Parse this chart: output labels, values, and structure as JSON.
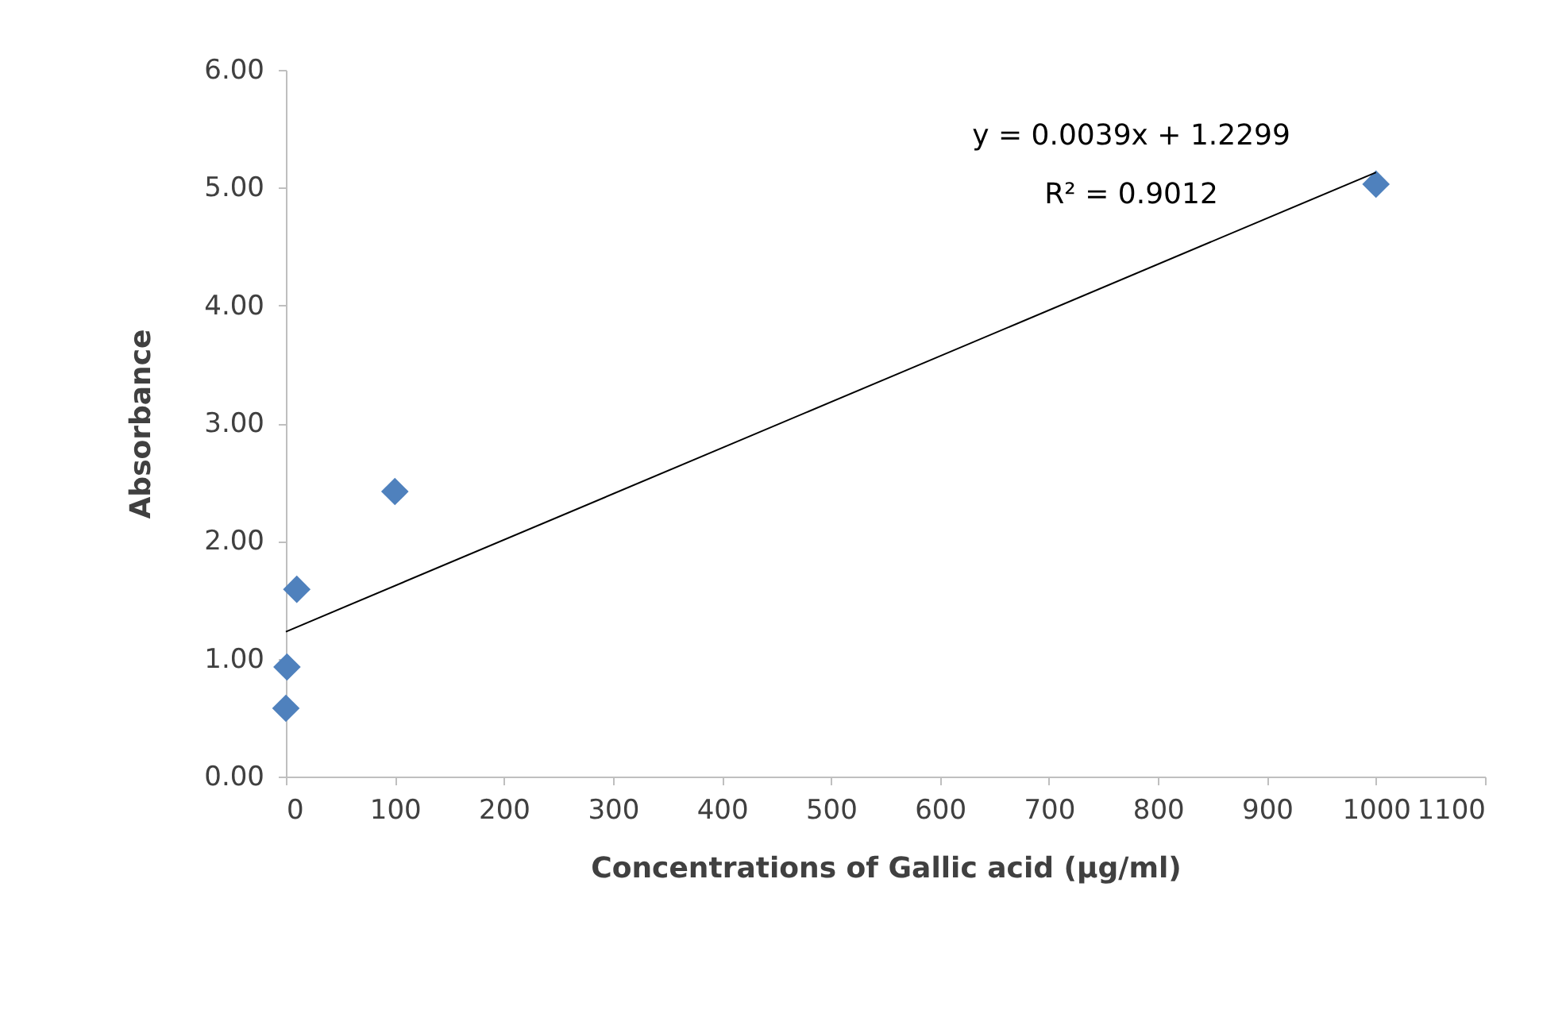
{
  "chart_data": {
    "type": "scatter",
    "xlabel": "Concentrations of Gallic acid (µg/ml)",
    "ylabel": "Absorbance",
    "xlim": [
      0,
      1100
    ],
    "ylim": [
      0,
      6
    ],
    "xticks": [
      0,
      100,
      200,
      300,
      400,
      500,
      600,
      700,
      800,
      900,
      1000,
      1100
    ],
    "yticks": [
      {
        "value": 0,
        "label": "0.00"
      },
      {
        "value": 1,
        "label": "1.00"
      },
      {
        "value": 2,
        "label": "2.00"
      },
      {
        "value": 3,
        "label": "3.00"
      },
      {
        "value": 4,
        "label": "4.00"
      },
      {
        "value": 5,
        "label": "5.00"
      },
      {
        "value": 6,
        "label": "6.00"
      }
    ],
    "grid": false,
    "marker": "diamond",
    "series": [
      {
        "color": "#4f81bd",
        "x": [
          0,
          1,
          10,
          100,
          1000
        ],
        "values": [
          0.58,
          0.93,
          1.59,
          2.42,
          5.03
        ]
      },
      {
        "type": "line",
        "color": "#000000",
        "line_style": "solid",
        "marker": "none",
        "x": [
          0,
          1000
        ],
        "values": [
          1.23,
          5.13
        ]
      }
    ],
    "annotations": [
      "y = 0.0039x + 1.2299",
      "R² = 0.9012"
    ]
  }
}
